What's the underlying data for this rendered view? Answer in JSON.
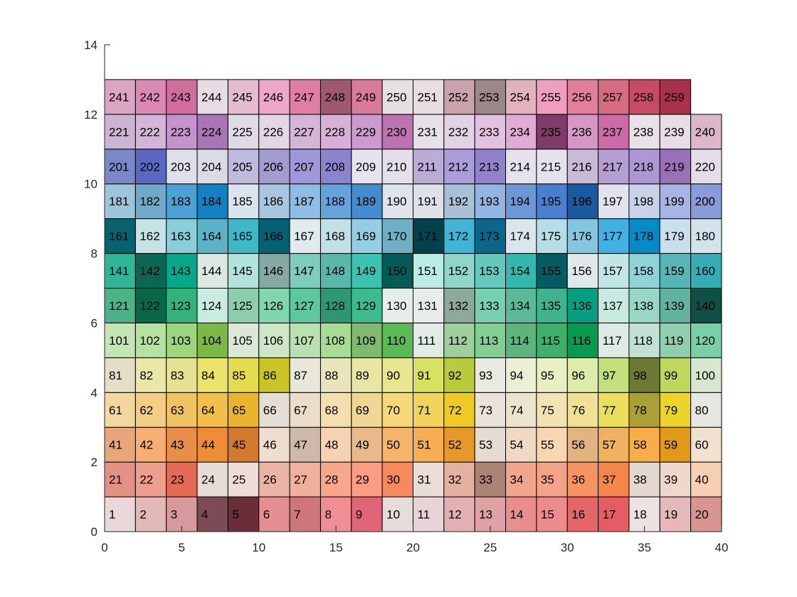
{
  "chart_data": {
    "type": "heatmap",
    "title": "",
    "xlabel": "",
    "ylabel": "",
    "xlim": [
      0,
      40
    ],
    "ylim": [
      0,
      14
    ],
    "x_ticks": [
      "0",
      "5",
      "10",
      "15",
      "20",
      "25",
      "30",
      "35",
      "40"
    ],
    "y_ticks": [
      "0",
      "2",
      "4",
      "6",
      "8",
      "10",
      "12",
      "14"
    ],
    "grid": false,
    "cell_width": 2,
    "cell_height": 1,
    "columns": 20,
    "rows": [
      {
        "y": 0,
        "labels": [
          "1",
          "2",
          "3",
          "4",
          "5",
          "6",
          "7",
          "8",
          "9",
          "10",
          "11",
          "12",
          "13",
          "14",
          "15",
          "16",
          "17",
          "18",
          "19",
          "20"
        ],
        "colors": [
          "#ead8d8",
          "#e2b8b8",
          "#d8999c",
          "#7b4c55",
          "#6b2d3a",
          "#e48f92",
          "#cf7678",
          "#ef8f94",
          "#df6577",
          "#e6dcdc",
          "#e8d4d6",
          "#e2b0b2",
          "#dfa1a3",
          "#e88e8e",
          "#ec8a8c",
          "#e46666",
          "#e65c63",
          "#ece2e2",
          "#e5b8b9",
          "#d69590"
        ]
      },
      {
        "y": 1,
        "labels": [
          "21",
          "22",
          "23",
          "24",
          "25",
          "26",
          "27",
          "28",
          "29",
          "30",
          "31",
          "32",
          "33",
          "34",
          "35",
          "36",
          "37",
          "38",
          "39",
          "40"
        ],
        "colors": [
          "#e39183",
          "#ef9d8d",
          "#e36b56",
          "#e5dcd8",
          "#efdcd7",
          "#e9b4a3",
          "#efb19c",
          "#f7a78a",
          "#fb9d83",
          "#f68a5c",
          "#eadcd7",
          "#e4b0a0",
          "#ab8373",
          "#f3a58c",
          "#f3a388",
          "#f7935f",
          "#f58548",
          "#e4d7cf",
          "#edd8cc",
          "#f7cfb2"
        ]
      },
      {
        "y": 2,
        "labels": [
          "41",
          "42",
          "43",
          "44",
          "45",
          "46",
          "47",
          "48",
          "49",
          "50",
          "51",
          "52",
          "53",
          "54",
          "55",
          "56",
          "57",
          "58",
          "59",
          "60"
        ],
        "colors": [
          "#e8a67b",
          "#f8ad72",
          "#e88d4a",
          "#ee8c35",
          "#d17a2e",
          "#efddd0",
          "#ceb9a8",
          "#f5d3b0",
          "#e9b88d",
          "#f4b46a",
          "#f8ae50",
          "#e69828",
          "#e5dbd0",
          "#efd9c2",
          "#f5d7b1",
          "#e2b47f",
          "#eeb15d",
          "#f8ae46",
          "#e19a15",
          "#f1e1cf"
        ]
      },
      {
        "y": 3,
        "labels": [
          "61",
          "62",
          "63",
          "64",
          "65",
          "66",
          "67",
          "68",
          "69",
          "70",
          "71",
          "72",
          "73",
          "74",
          "75",
          "76",
          "77",
          "78",
          "79",
          "80"
        ],
        "colors": [
          "#f2d79f",
          "#f3cd84",
          "#eec463",
          "#f1c048",
          "#e9b52c",
          "#e4ded5",
          "#ebdec8",
          "#f5dfb1",
          "#efd592",
          "#f6d877",
          "#f1d45c",
          "#eecb24",
          "#e9e3d8",
          "#ede4cd",
          "#f3e2b3",
          "#efe092",
          "#ebde5c",
          "#aaa036",
          "#ecd428",
          "#e8e6e0"
        ]
      },
      {
        "y": 4,
        "labels": [
          "81",
          "82",
          "83",
          "84",
          "85",
          "86",
          "87",
          "88",
          "89",
          "90",
          "91",
          "92",
          "93",
          "94",
          "95",
          "96",
          "97",
          "98",
          "99",
          "100"
        ],
        "colors": [
          "#e4dfc4",
          "#ebe7a8",
          "#e7e293",
          "#ebe36a",
          "#e4dc4e",
          "#cac425",
          "#e8e7d9",
          "#e8e5bb",
          "#e9e6a5",
          "#e8e68e",
          "#d7e262",
          "#b8cc3b",
          "#e9e9e2",
          "#edeed6",
          "#e8eec2",
          "#ddeca8",
          "#c4e07e",
          "#6d7a33",
          "#bed85e",
          "#d9e6cf"
        ]
      },
      {
        "y": 5,
        "labels": [
          "101",
          "102",
          "103",
          "104",
          "105",
          "106",
          "107",
          "108",
          "109",
          "110",
          "111",
          "112",
          "113",
          "114",
          "115",
          "116",
          "117",
          "118",
          "119",
          "120"
        ],
        "colors": [
          "#c5e4b4",
          "#b5e2a1",
          "#9fd57c",
          "#7bb946",
          "#dbe8d7",
          "#cde6c7",
          "#b9e0b1",
          "#a6dc94",
          "#7eba6e",
          "#5aba55",
          "#e2ebe3",
          "#9fcf9e",
          "#81cf92",
          "#5db57d",
          "#3fb06a",
          "#079b50",
          "#dcebe5",
          "#bfe2d4",
          "#8fcfaf",
          "#78d1a6"
        ]
      },
      {
        "y": 6,
        "labels": [
          "121",
          "122",
          "123",
          "124",
          "125",
          "126",
          "127",
          "128",
          "129",
          "130",
          "131",
          "132",
          "133",
          "134",
          "135",
          "136",
          "137",
          "138",
          "139",
          "140"
        ],
        "colors": [
          "#4eb288",
          "#076848",
          "#33b27b",
          "#c9ece0",
          "#8dccad",
          "#7fd6b0",
          "#5bc89e",
          "#2d9672",
          "#3cbc8d",
          "#e7ede9",
          "#e7ecea",
          "#8ea89a",
          "#77d0b0",
          "#5bb99a",
          "#40b28f",
          "#029f83",
          "#c7e9e0",
          "#98d6c6",
          "#60b39e",
          "#0f4f46"
        ]
      },
      {
        "y": 7,
        "labels": [
          "141",
          "142",
          "143",
          "144",
          "145",
          "146",
          "147",
          "148",
          "149",
          "150",
          "151",
          "152",
          "153",
          "154",
          "155",
          "156",
          "157",
          "158",
          "159",
          "160"
        ],
        "colors": [
          "#2fb597",
          "#0a6655",
          "#04a88a",
          "#dce6e3",
          "#b1e2dc",
          "#85a8a2",
          "#7ecbc0",
          "#5ab8ab",
          "#3bc2b1",
          "#015c58",
          "#bcece6",
          "#8ed5cc",
          "#63c9bd",
          "#34b7ad",
          "#035c64",
          "#e1e8e9",
          "#c2e5e6",
          "#8ed3d6",
          "#56b6b6",
          "#35adb5"
        ]
      },
      {
        "y": 8,
        "labels": [
          "161",
          "162",
          "163",
          "164",
          "165",
          "166",
          "167",
          "168",
          "169",
          "170",
          "171",
          "172",
          "173",
          "174",
          "175",
          "176",
          "177",
          "178",
          "179",
          "180"
        ],
        "colors": [
          "#05636e",
          "#c5e2e6",
          "#89ced6",
          "#5bb4c5",
          "#3eb7c7",
          "#036173",
          "#e2eaec",
          "#c2e0e6",
          "#94cee0",
          "#6eafc4",
          "#03414d",
          "#41b3d3",
          "#0b678a",
          "#d9e6eb",
          "#b6dde8",
          "#84c6df",
          "#41b0e3",
          "#028bc6",
          "#c9e0ec",
          "#d2e3ec"
        ]
      },
      {
        "y": 9,
        "labels": [
          "181",
          "182",
          "183",
          "184",
          "185",
          "186",
          "187",
          "188",
          "189",
          "190",
          "191",
          "192",
          "193",
          "194",
          "195",
          "196",
          "197",
          "198",
          "199",
          "200"
        ],
        "colors": [
          "#9ec4d8",
          "#71a9cb",
          "#4ca2d4",
          "#1181c1",
          "#dae4ed",
          "#a9c6e1",
          "#8ebde4",
          "#66a3da",
          "#448bd0",
          "#dfe4ea",
          "#dde2e9",
          "#a9c0d9",
          "#92b6e1",
          "#6d98d6",
          "#4a7fcd",
          "#1c5aa0",
          "#e1e4ec",
          "#c8d2e8",
          "#a7b4e4",
          "#8a9bd9"
        ]
      },
      {
        "y": 10,
        "labels": [
          "201",
          "202",
          "203",
          "204",
          "205",
          "206",
          "207",
          "208",
          "209",
          "210",
          "211",
          "212",
          "213",
          "214",
          "215",
          "216",
          "217",
          "218",
          "219",
          "220"
        ],
        "colors": [
          "#7989c8",
          "#5a68c1",
          "#dee0ea",
          "#dbdbe6",
          "#bcbadd",
          "#a29ccf",
          "#9e98d8",
          "#8a84cc",
          "#e6e2ee",
          "#e4e0eb",
          "#bbacd6",
          "#ab9ddb",
          "#9282cb",
          "#e5e2ec",
          "#e5e2ec",
          "#c9bad8",
          "#b59ed1",
          "#ae96d4",
          "#9870b6",
          "#e5dde8"
        ]
      },
      {
        "y": 11,
        "labels": [
          "221",
          "222",
          "223",
          "224",
          "225",
          "226",
          "227",
          "228",
          "229",
          "230",
          "231",
          "232",
          "233",
          "234",
          "235",
          "236",
          "237",
          "238",
          "239",
          "240"
        ],
        "colors": [
          "#cdb4d2",
          "#d3b5d8",
          "#c692cc",
          "#a875b5",
          "#dedae6",
          "#e5d6e6",
          "#d5b5d5",
          "#d7b0d5",
          "#cb9bcf",
          "#bd72b1",
          "#e6e1e8",
          "#e2d2e3",
          "#e2c0e0",
          "#dfacd6",
          "#7f3c68",
          "#d697c5",
          "#cd6aa8",
          "#e7e2e7",
          "#e7dde5",
          "#dcb7c9"
        ]
      },
      {
        "y": 12,
        "labels": [
          "241",
          "242",
          "243",
          "244",
          "245",
          "246",
          "247",
          "248",
          "249",
          "250",
          "251",
          "252",
          "253",
          "254",
          "255",
          "256",
          "257",
          "258",
          "259"
        ],
        "colors": [
          "#dba4c2",
          "#d989b3",
          "#cf6d9d",
          "#e6dce3",
          "#e4bccd",
          "#eca8c6",
          "#e07fa5",
          "#9e5871",
          "#d9799c",
          "#e5e1e3",
          "#e8dde2",
          "#c9a2ac",
          "#9b8688",
          "#e2b3be",
          "#ee9fbd",
          "#e37f9c",
          "#d36c80",
          "#c74a63",
          "#a7314a"
        ]
      }
    ]
  }
}
